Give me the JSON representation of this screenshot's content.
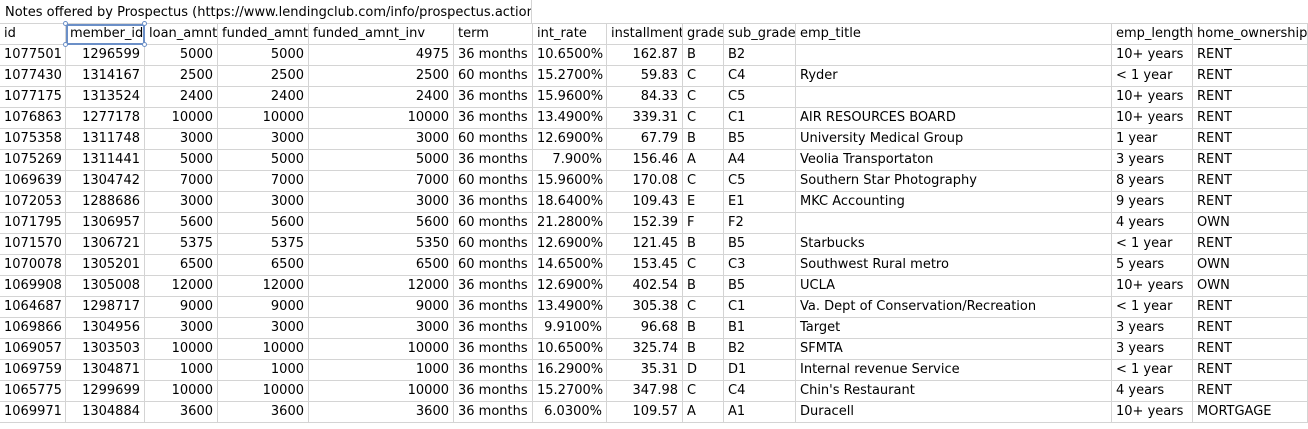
{
  "sheet": {
    "title": "Notes offered by Prospectus (https://www.lendingclub.com/info/prospectus.action)",
    "selected_cell": "member_id",
    "columns": [
      "id",
      "member_id",
      "loan_amnt",
      "funded_amnt",
      "funded_amnt_inv",
      "term",
      "int_rate",
      "installment",
      "grade",
      "sub_grade",
      "emp_title",
      "emp_length",
      "home_ownership"
    ],
    "rows": [
      [
        "1077501",
        "1296599",
        "5000",
        "5000",
        "4975",
        "36 months",
        "10.6500%",
        "162.87",
        "B",
        "B2",
        "",
        "10+ years",
        "RENT"
      ],
      [
        "1077430",
        "1314167",
        "2500",
        "2500",
        "2500",
        "60 months",
        "15.2700%",
        "59.83",
        "C",
        "C4",
        "Ryder",
        "< 1 year",
        "RENT"
      ],
      [
        "1077175",
        "1313524",
        "2400",
        "2400",
        "2400",
        "36 months",
        "15.9600%",
        "84.33",
        "C",
        "C5",
        "",
        "10+ years",
        "RENT"
      ],
      [
        "1076863",
        "1277178",
        "10000",
        "10000",
        "10000",
        "36 months",
        "13.4900%",
        "339.31",
        "C",
        "C1",
        "AIR RESOURCES BOARD",
        "10+ years",
        "RENT"
      ],
      [
        "1075358",
        "1311748",
        "3000",
        "3000",
        "3000",
        "60 months",
        "12.6900%",
        "67.79",
        "B",
        "B5",
        "University Medical Group",
        "1 year",
        "RENT"
      ],
      [
        "1075269",
        "1311441",
        "5000",
        "5000",
        "5000",
        "36 months",
        "7.900%",
        "156.46",
        "A",
        "A4",
        "Veolia Transportaton",
        "3 years",
        "RENT"
      ],
      [
        "1069639",
        "1304742",
        "7000",
        "7000",
        "7000",
        "60 months",
        "15.9600%",
        "170.08",
        "C",
        "C5",
        "Southern Star Photography",
        "8 years",
        "RENT"
      ],
      [
        "1072053",
        "1288686",
        "3000",
        "3000",
        "3000",
        "36 months",
        "18.6400%",
        "109.43",
        "E",
        "E1",
        "MKC Accounting",
        "9 years",
        "RENT"
      ],
      [
        "1071795",
        "1306957",
        "5600",
        "5600",
        "5600",
        "60 months",
        "21.2800%",
        "152.39",
        "F",
        "F2",
        "",
        "4 years",
        "OWN"
      ],
      [
        "1071570",
        "1306721",
        "5375",
        "5375",
        "5350",
        "60 months",
        "12.6900%",
        "121.45",
        "B",
        "B5",
        "Starbucks",
        "< 1 year",
        "RENT"
      ],
      [
        "1070078",
        "1305201",
        "6500",
        "6500",
        "6500",
        "60 months",
        "14.6500%",
        "153.45",
        "C",
        "C3",
        "Southwest Rural metro",
        "5 years",
        "OWN"
      ],
      [
        "1069908",
        "1305008",
        "12000",
        "12000",
        "12000",
        "36 months",
        "12.6900%",
        "402.54",
        "B",
        "B5",
        "UCLA",
        "10+ years",
        "OWN"
      ],
      [
        "1064687",
        "1298717",
        "9000",
        "9000",
        "9000",
        "36 months",
        "13.4900%",
        "305.38",
        "C",
        "C1",
        "Va. Dept of Conservation/Recreation",
        "< 1 year",
        "RENT"
      ],
      [
        "1069866",
        "1304956",
        "3000",
        "3000",
        "3000",
        "36 months",
        "9.9100%",
        "96.68",
        "B",
        "B1",
        "Target",
        "3 years",
        "RENT"
      ],
      [
        "1069057",
        "1303503",
        "10000",
        "10000",
        "10000",
        "36 months",
        "10.6500%",
        "325.74",
        "B",
        "B2",
        "SFMTA",
        "3 years",
        "RENT"
      ],
      [
        "1069759",
        "1304871",
        "1000",
        "1000",
        "1000",
        "36 months",
        "16.2900%",
        "35.31",
        "D",
        "D1",
        "Internal revenue Service",
        "< 1 year",
        "RENT"
      ],
      [
        "1065775",
        "1299699",
        "10000",
        "10000",
        "10000",
        "36 months",
        "15.2700%",
        "347.98",
        "C",
        "C4",
        "Chin's Restaurant",
        "4 years",
        "RENT"
      ],
      [
        "1069971",
        "1304884",
        "3600",
        "3600",
        "3600",
        "36 months",
        "6.0300%",
        "109.57",
        "A",
        "A1",
        "Duracell",
        "10+ years",
        "MORTGAGE"
      ]
    ]
  }
}
